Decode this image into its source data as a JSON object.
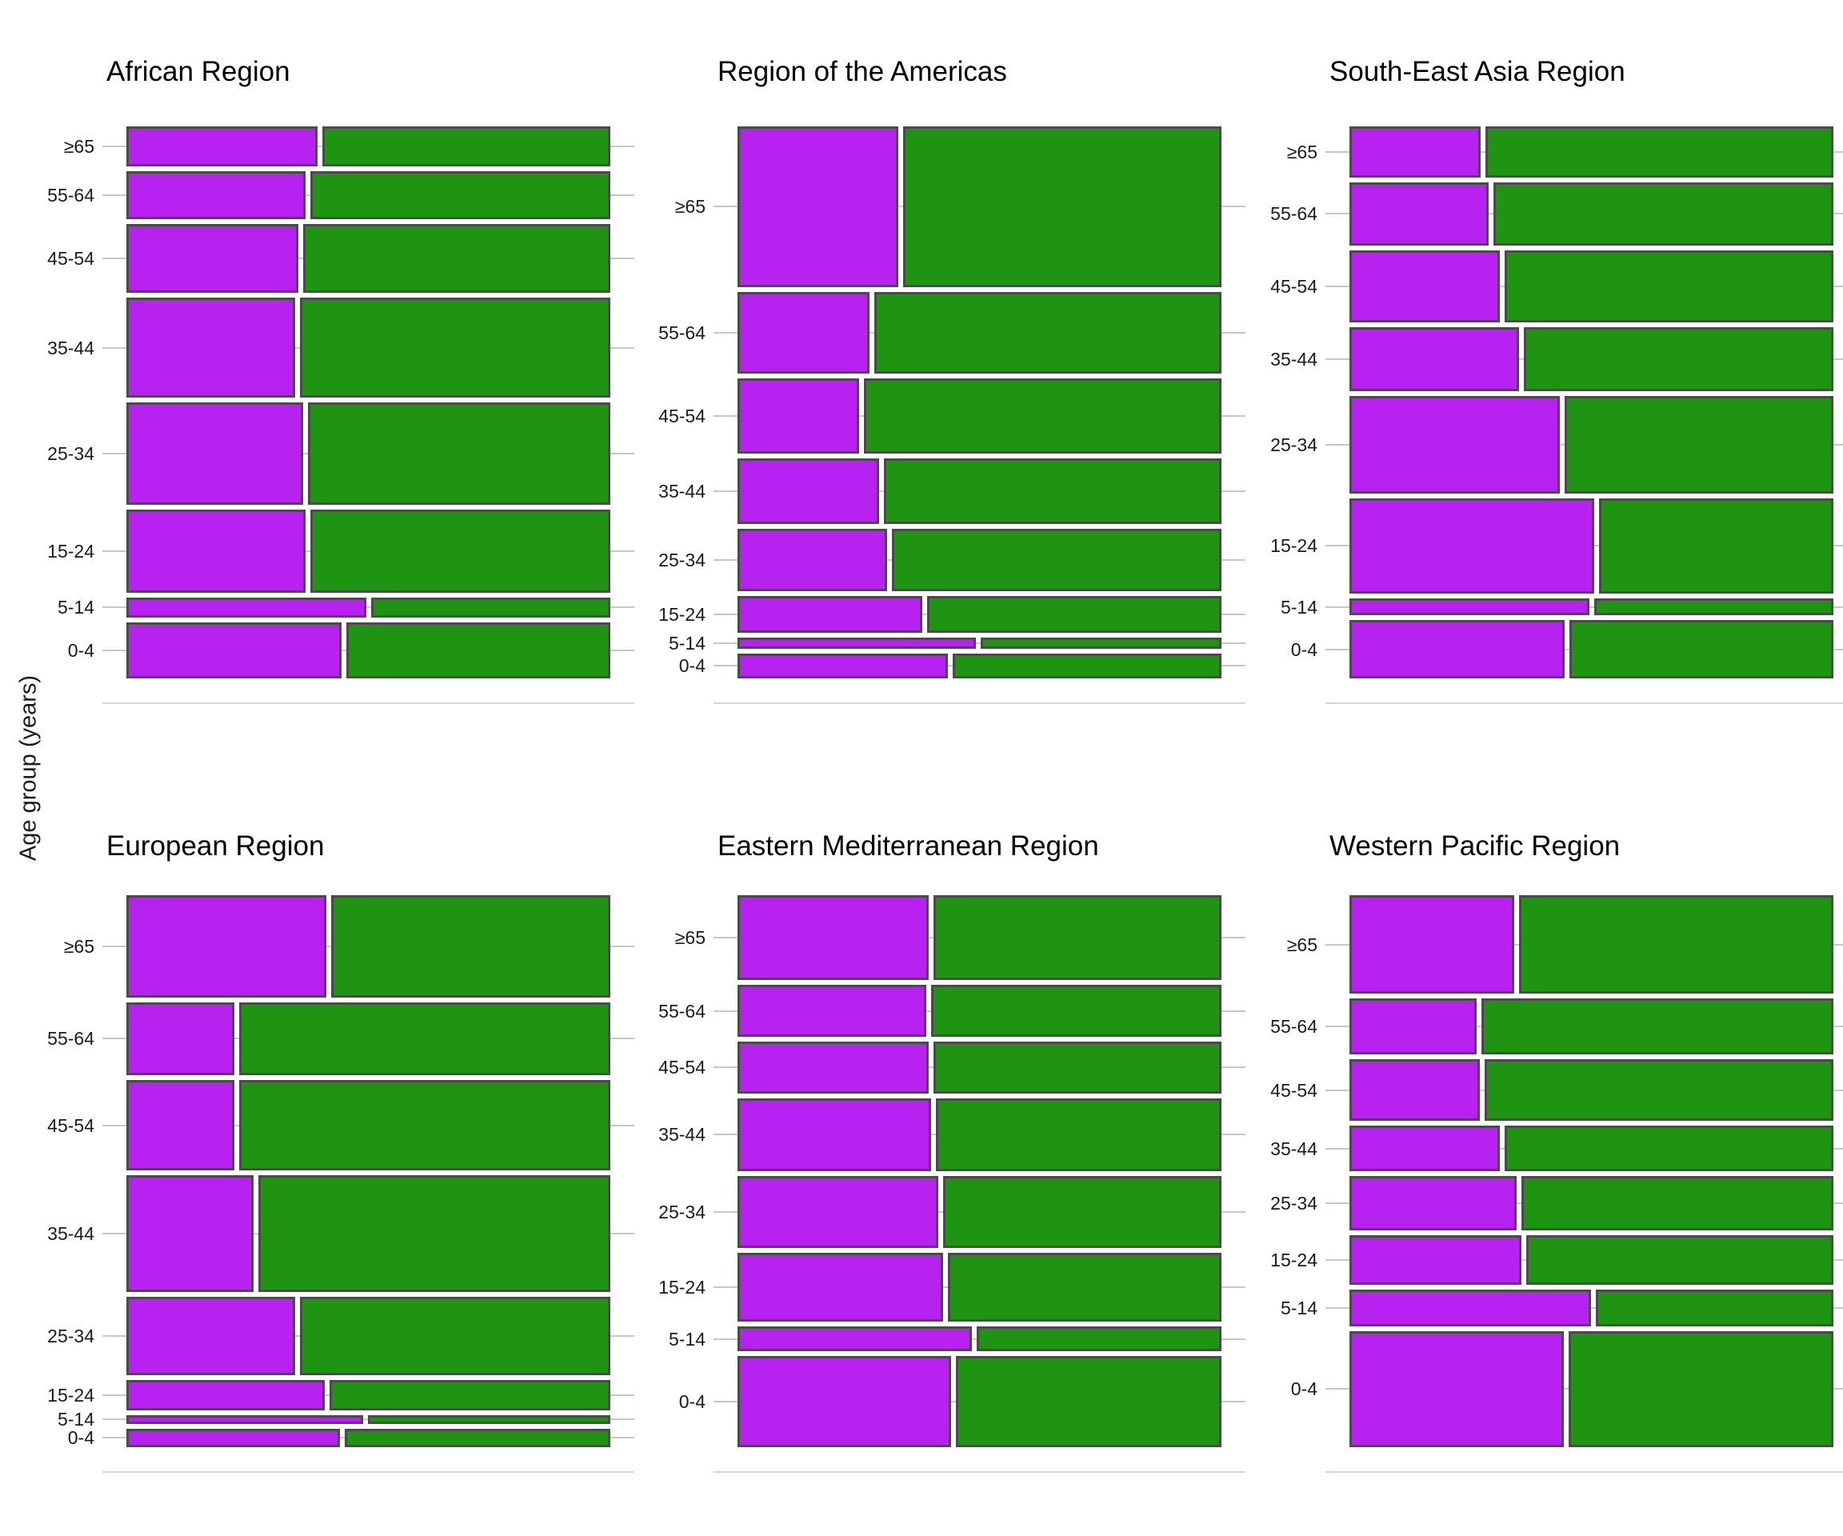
{
  "axis": {
    "y_title": "Age group (years)"
  },
  "colors": {
    "purple": "#B822F0",
    "green": "#1F9412",
    "segment_border": "#4A4A4A",
    "gridline": "#C8C8C8",
    "baseline": "#D6D6D6",
    "tick_label": "#1A1A1A",
    "facet_title": "#000000"
  },
  "chart_data": {
    "type": "mosaic",
    "y_axis_title": "Age group (years)",
    "age_groups": [
      "≥65",
      "55-64",
      "45-54",
      "35-44",
      "25-34",
      "15-24",
      "5-14",
      "0-4"
    ],
    "note_layout": "6 facet panels in a 3x2 grid; each row height is the age group's share, each row is split into a purple (left) and green (right) segment",
    "facets": [
      {
        "title": "African Region",
        "rows": [
          {
            "label": "≥65",
            "size": 0.077,
            "purple": 0.4
          },
          {
            "label": "55-64",
            "size": 0.092,
            "purple": 0.376
          },
          {
            "label": "45-54",
            "size": 0.134,
            "purple": 0.361
          },
          {
            "label": "35-44",
            "size": 0.192,
            "purple": 0.354
          },
          {
            "label": "25-34",
            "size": 0.198,
            "purple": 0.371
          },
          {
            "label": "15-24",
            "size": 0.16,
            "purple": 0.376
          },
          {
            "label": "5-14",
            "size": 0.039,
            "purple": 0.5
          },
          {
            "label": "0-4",
            "size": 0.108,
            "purple": 0.45
          }
        ]
      },
      {
        "title": "Region of the Americas",
        "rows": [
          {
            "label": "≥65",
            "size": 0.31,
            "purple": 0.338
          },
          {
            "label": "55-64",
            "size": 0.157,
            "purple": 0.278
          },
          {
            "label": "45-54",
            "size": 0.145,
            "purple": 0.256
          },
          {
            "label": "35-44",
            "size": 0.127,
            "purple": 0.298
          },
          {
            "label": "25-34",
            "size": 0.121,
            "purple": 0.314
          },
          {
            "label": "15-24",
            "size": 0.071,
            "purple": 0.387
          },
          {
            "label": "5-14",
            "size": 0.021,
            "purple": 0.498
          },
          {
            "label": "0-4",
            "size": 0.048,
            "purple": 0.44
          }
        ]
      },
      {
        "title": "South-East Asia Region",
        "rows": [
          {
            "label": "≥65",
            "size": 0.099,
            "purple": 0.276
          },
          {
            "label": "55-64",
            "size": 0.121,
            "purple": 0.292
          },
          {
            "label": "45-54",
            "size": 0.14,
            "purple": 0.316
          },
          {
            "label": "35-44",
            "size": 0.123,
            "purple": 0.355
          },
          {
            "label": "25-34",
            "size": 0.188,
            "purple": 0.44
          },
          {
            "label": "15-24",
            "size": 0.184,
            "purple": 0.51
          },
          {
            "label": "5-14",
            "size": 0.033,
            "purple": 0.5
          },
          {
            "label": "0-4",
            "size": 0.112,
            "purple": 0.449
          }
        ]
      },
      {
        "title": "European Region",
        "rows": [
          {
            "label": "≥65",
            "size": 0.197,
            "purple": 0.418
          },
          {
            "label": "55-64",
            "size": 0.141,
            "purple": 0.228
          },
          {
            "label": "45-54",
            "size": 0.175,
            "purple": 0.228
          },
          {
            "label": "35-44",
            "size": 0.224,
            "purple": 0.267
          },
          {
            "label": "25-34",
            "size": 0.152,
            "purple": 0.354
          },
          {
            "label": "15-24",
            "size": 0.058,
            "purple": 0.415
          },
          {
            "label": "5-14",
            "size": 0.017,
            "purple": 0.495
          },
          {
            "label": "0-4",
            "size": 0.036,
            "purple": 0.446
          }
        ]
      },
      {
        "title": "Eastern Mediterranean Region",
        "rows": [
          {
            "label": "≥65",
            "size": 0.164,
            "purple": 0.4
          },
          {
            "label": "55-64",
            "size": 0.1,
            "purple": 0.395
          },
          {
            "label": "45-54",
            "size": 0.1,
            "purple": 0.4
          },
          {
            "label": "35-44",
            "size": 0.14,
            "purple": 0.405
          },
          {
            "label": "25-34",
            "size": 0.139,
            "purple": 0.42
          },
          {
            "label": "15-24",
            "size": 0.134,
            "purple": 0.43
          },
          {
            "label": "5-14",
            "size": 0.047,
            "purple": 0.49
          },
          {
            "label": "0-4",
            "size": 0.176,
            "purple": 0.447
          }
        ]
      },
      {
        "title": "Western Pacific Region",
        "rows": [
          {
            "label": "≥65",
            "size": 0.19,
            "purple": 0.345
          },
          {
            "label": "55-64",
            "size": 0.108,
            "purple": 0.268
          },
          {
            "label": "45-54",
            "size": 0.119,
            "purple": 0.275
          },
          {
            "label": "35-44",
            "size": 0.088,
            "purple": 0.315
          },
          {
            "label": "25-34",
            "size": 0.105,
            "purple": 0.35
          },
          {
            "label": "15-24",
            "size": 0.096,
            "purple": 0.36
          },
          {
            "label": "5-14",
            "size": 0.07,
            "purple": 0.504
          },
          {
            "label": "0-4",
            "size": 0.224,
            "purple": 0.448
          }
        ]
      }
    ]
  }
}
